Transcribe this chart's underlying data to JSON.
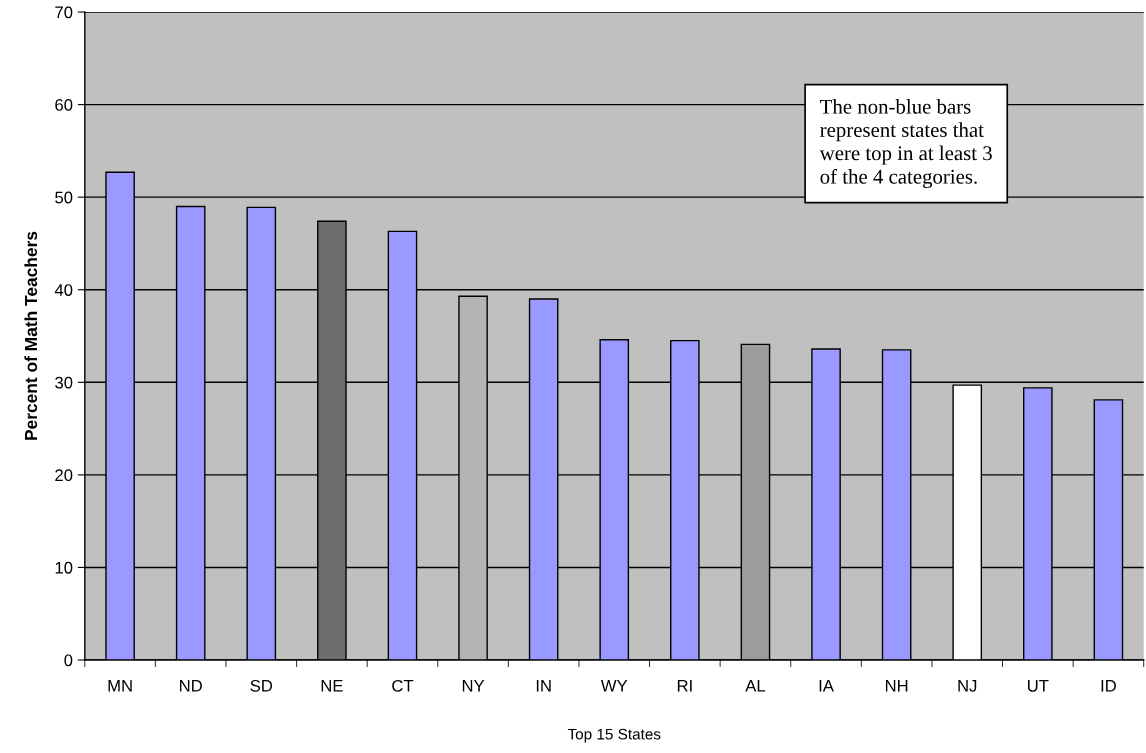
{
  "chart_data": {
    "type": "bar",
    "xlabel": "Top 15 States",
    "ylabel": "Percent of Math Teachers",
    "categories": [
      "MN",
      "ND",
      "SD",
      "NE",
      "CT",
      "NY",
      "IN",
      "WY",
      "RI",
      "AL",
      "IA",
      "NH",
      "NJ",
      "UT",
      "ID"
    ],
    "values": [
      52.7,
      49.0,
      48.9,
      47.4,
      46.3,
      39.3,
      39.0,
      34.6,
      34.5,
      34.1,
      33.6,
      33.5,
      29.7,
      29.4,
      28.1
    ],
    "colors": [
      "#9999ff",
      "#9999ff",
      "#9999ff",
      "#6e6e6e",
      "#9999ff",
      "#b4b4b4",
      "#9999ff",
      "#9999ff",
      "#9999ff",
      "#9c9c9c",
      "#9999ff",
      "#9999ff",
      "#ffffff",
      "#9999ff",
      "#9999ff"
    ],
    "ylim": [
      0,
      70
    ],
    "yticks": [
      0,
      10,
      20,
      30,
      40,
      50,
      60,
      70
    ],
    "grid": "y",
    "annotations": [
      "The non-blue bars\nrepresent states that\nwere top in at least 3\nof the 4 categories."
    ]
  }
}
